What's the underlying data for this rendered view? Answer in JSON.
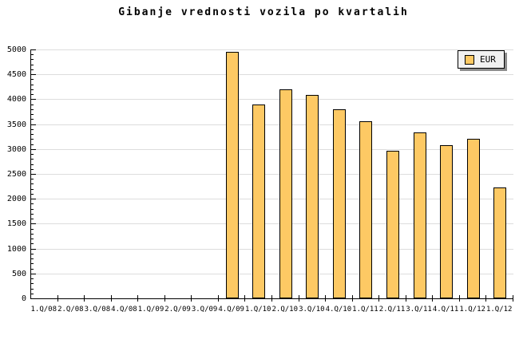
{
  "title": "Gibanje vrednosti vozila po kvartalih",
  "legend": {
    "label": "EUR"
  },
  "colors": {
    "bar_fill": "#FDC964",
    "bar_border": "#000000",
    "grid": "#DDDDDD",
    "axis": "#000000",
    "legend_background": "#F1F1F1",
    "background": "#FFFFFF"
  },
  "chart_data": {
    "type": "bar",
    "title": "Gibanje vrednosti vozila po kvartalih",
    "categories": [
      "1.Q/08",
      "2.Q/08",
      "3.Q/08",
      "4.Q/08",
      "1.Q/09",
      "2.Q/09",
      "3.Q/09",
      "4.Q/09",
      "1.Q/10",
      "2.Q/10",
      "3.Q/10",
      "4.Q/10",
      "1.Q/11",
      "2.Q/11",
      "3.Q/11",
      "4.Q/11",
      "1.Q/12",
      "1.Q/12"
    ],
    "series": [
      {
        "name": "EUR",
        "values": [
          null,
          null,
          null,
          null,
          null,
          null,
          null,
          4950,
          3900,
          4200,
          4080,
          3800,
          3560,
          2960,
          3340,
          3080,
          3210,
          2220
        ]
      }
    ],
    "xlabel": "",
    "ylabel": "",
    "ylim": [
      0,
      5000
    ],
    "ytick_step": 500,
    "yminor_step": 100,
    "grid": true,
    "legend_position": "top-right"
  }
}
